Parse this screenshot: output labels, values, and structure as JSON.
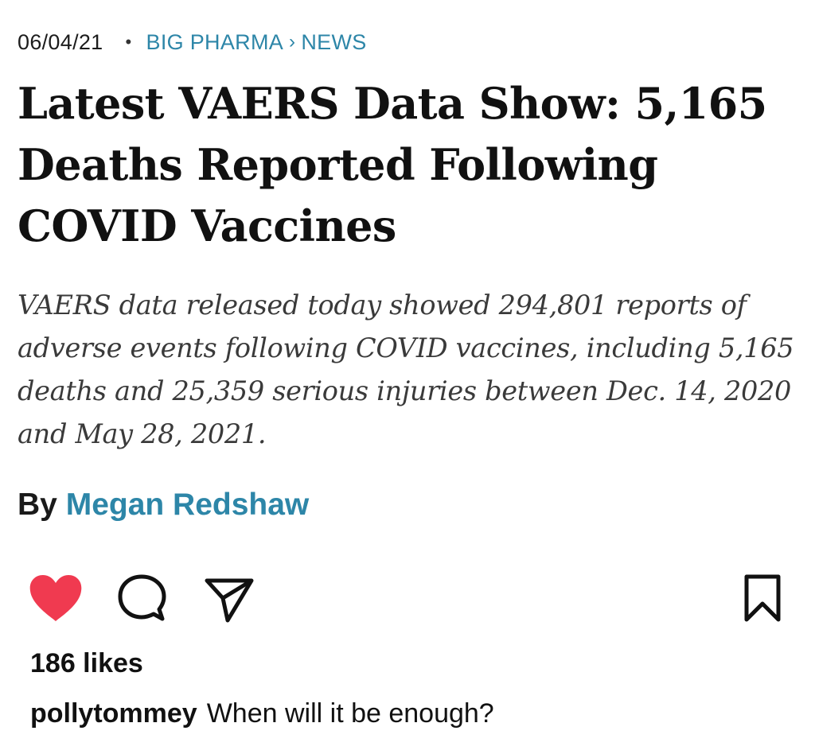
{
  "article": {
    "date": "06/04/21",
    "separator_dot": "•",
    "category": "BIG PHARMA",
    "category_sep": "›",
    "subcategory": "NEWS",
    "headline": "Latest VAERS Data Show: 5,165 Deaths Reported Following COVID Vaccines",
    "dek": "VAERS data released today showed 294,801 reports of adverse events following COVID vaccines, including 5,165 deaths and 25,359 serious injuries between Dec. 14, 2020 and May 28, 2021.",
    "byline_prefix": "By",
    "author": "Megan Redshaw"
  },
  "post": {
    "actions": {
      "like_icon": "heart-icon",
      "comment_icon": "comment-icon",
      "share_icon": "send-icon",
      "save_icon": "bookmark-icon"
    },
    "likes": "186 likes",
    "caption_user": "pollytommey",
    "caption_text": "When will it be enough?"
  },
  "colors": {
    "accent_link": "#2d86a8",
    "like_red": "#f03a50",
    "text": "#111111"
  }
}
